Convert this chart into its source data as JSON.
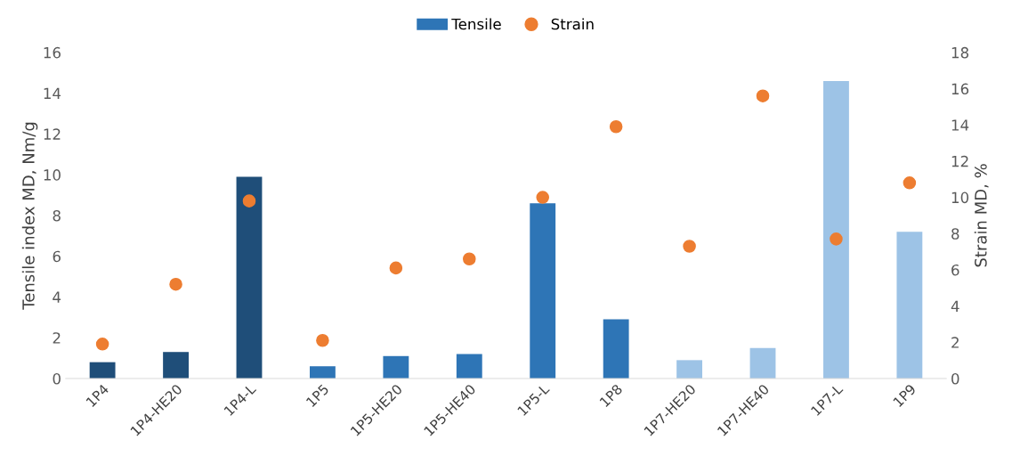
{
  "chart_data": {
    "type": "bar",
    "categories": [
      "1P4",
      "1P4-HE20",
      "1P4-L",
      "1P5",
      "1P5-HE20",
      "1P5-HE40",
      "1P5-L",
      "1P8",
      "1P7-HE20",
      "1P7-HE40",
      "1P7-L",
      "1P9"
    ],
    "series": [
      {
        "name": "Tensile",
        "color": "#2e75b6",
        "colors": [
          "#1f4e79",
          "#1f4e79",
          "#1f4e79",
          "#2e75b6",
          "#2e75b6",
          "#2e75b6",
          "#2e75b6",
          "#2e75b6",
          "#9dc3e6",
          "#9dc3e6",
          "#9dc3e6",
          "#9dc3e6"
        ],
        "values": [
          0.8,
          1.3,
          9.9,
          0.6,
          1.1,
          1.2,
          8.6,
          2.9,
          0.9,
          1.5,
          14.6,
          7.2
        ]
      },
      {
        "name": "Strain",
        "type": "scatter",
        "axis": "y2",
        "color": "#ed7d31",
        "values": [
          1.9,
          5.2,
          9.8,
          2.1,
          6.1,
          6.6,
          10.0,
          13.9,
          7.3,
          15.6,
          7.7,
          10.8
        ]
      }
    ],
    "ylabel": "Tensile index MD, Nm/g",
    "y2label": "Strain MD, %",
    "ylim": [
      0,
      16
    ],
    "yticks": [
      0,
      2,
      4,
      6,
      8,
      10,
      12,
      14,
      16
    ],
    "y2lim": [
      0,
      18
    ],
    "y2ticks": [
      0,
      2,
      4,
      6,
      8,
      10,
      12,
      14,
      16,
      18
    ],
    "marker": "circle",
    "grid": false,
    "legend": "top"
  }
}
